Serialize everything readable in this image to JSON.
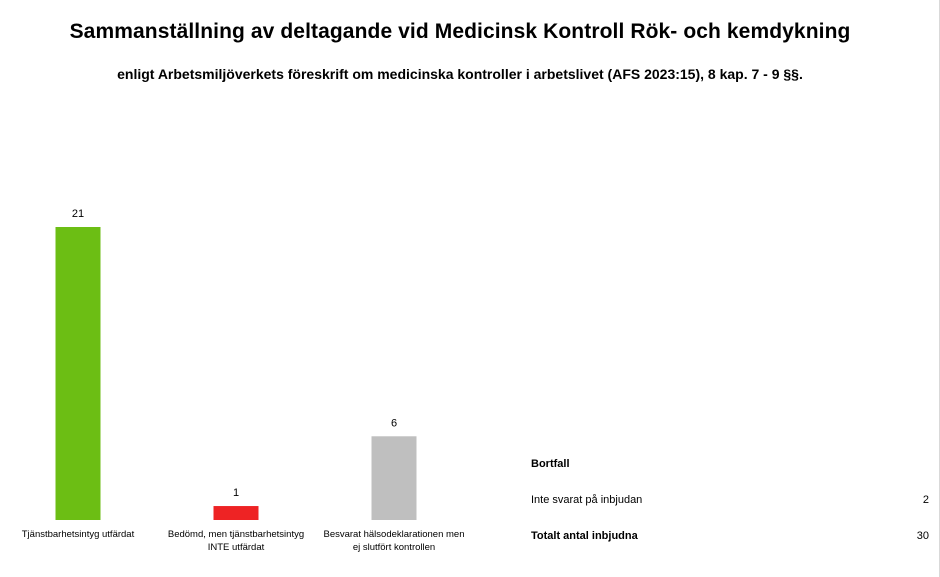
{
  "title": "Sammanställning av deltagande vid Medicinsk Kontroll Rök- och kemdykning",
  "subtitle": "enligt Arbetsmiljöverkets föreskrift om medicinska kontroller i arbetslivet (AFS 2023:15), 8 kap. 7 - 9 §§.",
  "chart_data": {
    "type": "bar",
    "categories": [
      [
        "Tjänstbarhetsintyg utfärdat"
      ],
      [
        "Bedömd, men tjänstbarhetsintyg",
        "INTE utfärdat"
      ],
      [
        "Besvarat hälsodeklarationen men",
        "ej slutfört kontrollen"
      ]
    ],
    "values": [
      21,
      1,
      6
    ],
    "data_labels": [
      "21",
      "1",
      "6"
    ],
    "colors": [
      "#6cbe14",
      "#ee2324",
      "#bfbfbf"
    ],
    "ylim": [
      0,
      21
    ],
    "grid": false,
    "legend": "none"
  },
  "side_table": {
    "header": "Bortfall",
    "rows": [
      {
        "label": "Inte svarat på inbjudan",
        "value": "2"
      },
      {
        "label": "Totalt antal inbjudna",
        "value": "30"
      }
    ]
  }
}
